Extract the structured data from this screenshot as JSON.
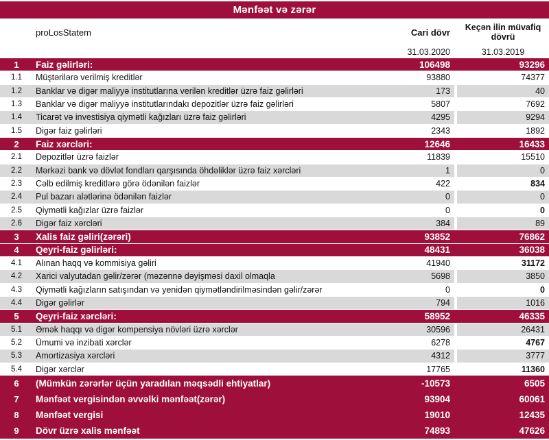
{
  "title": "Mənfəət və zərər",
  "header": {
    "label": "proLosStatem",
    "col1_title": "Cari dövr",
    "col2_title": "Keçən ilin müvafiq dövrü",
    "col1_date": "31.03.2020",
    "col2_date": "31.03.2019"
  },
  "colors": {
    "accent_red": "#9E0F3C",
    "row_gray": "#D9D9D9",
    "row_white": "#FFFFFF",
    "section_text": "#FFFFFF",
    "body_text": "#111111"
  },
  "rows": [
    {
      "num": "1",
      "label": "Faiz gəlirləri:",
      "v1": "106498",
      "v2": "93296",
      "type": "section"
    },
    {
      "num": "1.1",
      "label": "Müştərilərə verilmiş kreditlər",
      "v1": "93880",
      "v2": "74377",
      "type": "white"
    },
    {
      "num": "1.2",
      "label": "Banklar və digər maliyyə institutlarına verilən kreditlər üzrə faiz gəlirləri",
      "v1": "173",
      "v2": "40",
      "type": "gray"
    },
    {
      "num": "1.3",
      "label": "Banklar və digər maliyyə institutlarındakı depozitlər üzrə faiz gəlirləri",
      "v1": "5807",
      "v2": "7692",
      "type": "white"
    },
    {
      "num": "1.4",
      "label": "Ticarət və investisiya qiymətli kağızları üzrə faiz gəlirləri",
      "v1": "4295",
      "v2": "9294",
      "type": "gray"
    },
    {
      "num": "1.5",
      "label": "Digər faiz gəlirləri",
      "v1": "2343",
      "v2": "1892",
      "type": "white"
    },
    {
      "num": "2",
      "label": "Faiz xərcləri:",
      "v1": "12646",
      "v2": "16433",
      "type": "section"
    },
    {
      "num": "2.1",
      "label": "Depozitlər üzrə faizlər",
      "v1": "11839",
      "v2": "15510",
      "type": "white"
    },
    {
      "num": "2.2",
      "label": "Mərkəzi bank və dövlət fondları qarşısında öhdəliklər üzrə faiz xərcləri",
      "v1": "1",
      "v2": "0",
      "type": "gray"
    },
    {
      "num": "2.3",
      "label": "Cəlb edilmiş kreditlərə görə ödənilən faizlər",
      "v1": "422",
      "v2": "834",
      "type": "white",
      "v2_bold": true
    },
    {
      "num": "2.4",
      "label": "Pul bazarı alətlərinə ödənilən faizlər",
      "v1": "0",
      "v2": "0",
      "type": "gray"
    },
    {
      "num": "2.5",
      "label": "Qiymətli kağızlar üzrə faizlər",
      "v1": "0",
      "v2": "0",
      "type": "white",
      "v2_bold": true
    },
    {
      "num": "2.6",
      "label": "Digər faiz xərcləri",
      "v1": "384",
      "v2": "89",
      "type": "gray"
    },
    {
      "num": "3",
      "label": "Xalis faiz gəliri(zərəri)",
      "v1": "93852",
      "v2": "76862",
      "type": "section"
    },
    {
      "num": "4",
      "label": "Qeyri-faiz gəlirləri:",
      "v1": "48431",
      "v2": "36038",
      "type": "section"
    },
    {
      "num": "4.1",
      "label": "Alınan haqq və kommisiya gəliri",
      "v1": "41940",
      "v2": "31172",
      "type": "white",
      "v2_bold": true
    },
    {
      "num": "4.2",
      "label": "Xarici valyutadan gəlir/zərər (məzənnə dəyişməsi daxil olmaqla",
      "v1": "5698",
      "v2": "3850",
      "type": "gray"
    },
    {
      "num": "4.3",
      "label": "Qiymətli kağızların satışından və yenidən qiymətləndirilməsindən gəlir/zərər",
      "v1": "0",
      "v2": "0",
      "type": "white",
      "v2_bold": true
    },
    {
      "num": "4.4",
      "label": "Digər gəlirlər",
      "v1": "794",
      "v2": "1016",
      "type": "gray"
    },
    {
      "num": "5",
      "label": "Qeyri-faiz xərcləri:",
      "v1": "58952",
      "v2": "46335",
      "type": "section"
    },
    {
      "num": "5.1",
      "label": "Əmək haqqı və digər kompensiya növləri üzrə xərclər",
      "v1": "30596",
      "v2": "26431",
      "type": "gray"
    },
    {
      "num": "5.2",
      "label": "Ümumi və inzibati xərclər",
      "v1": "6278",
      "v2": "4767",
      "type": "white",
      "v2_bold": true
    },
    {
      "num": "5.3",
      "label": "Amortizasiya xərcləri",
      "v1": "4312",
      "v2": "3777",
      "type": "gray"
    },
    {
      "num": "5.4",
      "label": "Digər xərclər",
      "v1": "17765",
      "v2": "11360",
      "type": "white",
      "v2_bold": true
    }
  ],
  "footer_rows": [
    {
      "num": "6",
      "label": "(Mümkün zərərlər üçün yaradılan məqsədli ehtiyatlar)",
      "v1": "-10573",
      "v2": "6505",
      "type": "section"
    },
    {
      "num": "7",
      "label": "Mənfəət vergisindən əvvəlki mənfəət(zərər)",
      "v1": "93904",
      "v2": "60061",
      "type": "section"
    },
    {
      "num": "8",
      "label": "Mənfəət vergisi",
      "v1": "19010",
      "v2": "12435",
      "type": "section"
    },
    {
      "num": "9",
      "label": "Dövr üzrə xalis mənfəət",
      "v1": "74893",
      "v2": "47626",
      "type": "section"
    }
  ]
}
